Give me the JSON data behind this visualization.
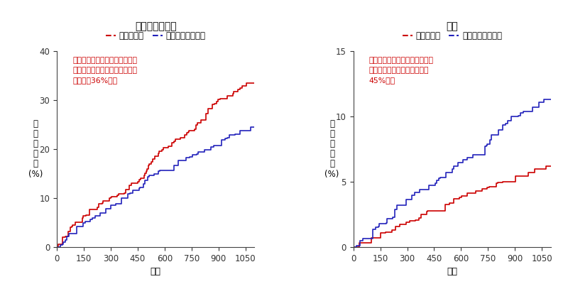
{
  "left_title": "心血管イベント",
  "right_title": "骨折",
  "legend_label1": "デノスマブ",
  "legend_label2": "ビスホスホネート",
  "xlabel": "日数",
  "left_ylabel": "累\n積\n発\n生\n率\n(%)",
  "right_ylabel": "累\n積\n発\n生\n率\n(%)",
  "left_annotation": "デノスマブはビスホスホネート\nと比較して心血管イベント発生\nリスクが36%高い",
  "right_annotation": "デノスマブはビスホスホネート\nと比較して骨折発生リスクが\n45%低い",
  "annotation_color": "#cc0000",
  "denosumab_color": "#cc0000",
  "bisphosphonate_color": "#2222bb",
  "left_ylim": [
    0,
    40
  ],
  "right_ylim": [
    0,
    15
  ],
  "xlim": [
    0,
    1100
  ],
  "xticks": [
    0,
    150,
    300,
    450,
    600,
    750,
    900,
    1050
  ],
  "left_yticks": [
    0,
    10,
    20,
    30,
    40
  ],
  "right_yticks": [
    0,
    5,
    10,
    15
  ],
  "bg_color": "#ffffff"
}
